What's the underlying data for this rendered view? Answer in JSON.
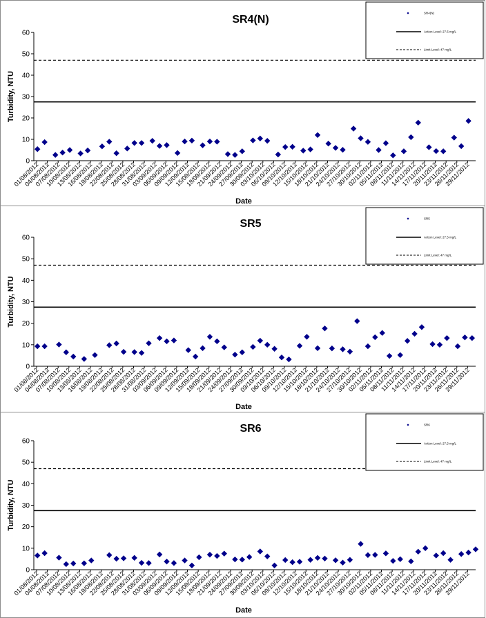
{
  "chart_data": [
    {
      "type": "scatter",
      "title": "SR4(N)",
      "xlabel": "Date",
      "ylabel": "Turbidity, NTU",
      "ylim": [
        0,
        60
      ],
      "yticks": [
        0,
        10,
        20,
        30,
        40,
        50,
        60
      ],
      "grid": false,
      "legend_position": "top-right",
      "xticklabels": [
        "01/08/2012",
        "04/08/2012",
        "07/08/2012",
        "10/08/2012",
        "13/08/2012",
        "16/08/2012",
        "19/08/2012",
        "22/08/2012",
        "25/08/2012",
        "28/08/2012",
        "31/08/2012",
        "03/09/2012",
        "06/09/2012",
        "09/09/2012",
        "12/09/2012",
        "15/09/2012",
        "18/09/2012",
        "21/09/2012",
        "24/09/2012",
        "27/09/2012",
        "30/09/2012",
        "03/10/2012",
        "06/10/2012",
        "09/10/2012",
        "12/10/2012",
        "15/10/2012",
        "18/10/2012",
        "21/10/2012",
        "24/10/2012",
        "27/10/2012",
        "30/10/2012",
        "02/11/2012",
        "05/11/2012",
        "08/11/2012",
        "11/11/2012",
        "14/11/2012",
        "17/11/2012",
        "20/11/2012",
        "23/11/2012",
        "26/11/2012",
        "29/11/2012"
      ],
      "series": [
        {
          "name": "SR4(N)",
          "kind": "markers",
          "marker": "diamond",
          "color": "#00008b",
          "x": [
            1,
            3,
            6,
            8,
            10,
            13,
            15,
            19,
            21,
            23,
            26,
            28,
            30,
            33,
            35,
            37,
            40,
            42,
            44,
            47,
            49,
            51,
            54,
            56,
            58,
            61,
            63,
            65,
            68,
            70,
            72,
            75,
            77,
            79,
            82,
            84,
            86,
            89,
            91,
            93,
            96,
            98,
            100,
            103,
            105,
            107,
            110,
            112,
            114,
            117,
            119,
            121
          ],
          "y": [
            5.4,
            8.7,
            2.7,
            3.8,
            5.0,
            3.4,
            4.8,
            6.7,
            8.9,
            3.5,
            5.7,
            8.3,
            8.3,
            9.3,
            6.9,
            7.3,
            3.6,
            9.0,
            9.4,
            7.2,
            9.0,
            8.9,
            3.1,
            2.7,
            4.4,
            9.5,
            10.4,
            9.3,
            2.9,
            6.4,
            6.5,
            4.7,
            5.3,
            12.0,
            8.0,
            6.0,
            5.1,
            15.0,
            10.5,
            8.8,
            5.0,
            8.2,
            2.5,
            4.4,
            11.0,
            17.8,
            6.3,
            4.5,
            4.4,
            10.8,
            6.8,
            18.6
          ]
        },
        {
          "name": "Action Level: 27.5 mg/L",
          "kind": "hline",
          "style": "solid",
          "value": 27.5
        },
        {
          "name": "Limit Level: 47 mg/L",
          "kind": "hline",
          "style": "dashed",
          "value": 47
        }
      ]
    },
    {
      "type": "scatter",
      "title": "SR5",
      "xlabel": "Date",
      "ylabel": "Turbidity, NTU",
      "ylim": [
        0,
        60
      ],
      "yticks": [
        0,
        10,
        20,
        30,
        40,
        50,
        60
      ],
      "grid": false,
      "legend_position": "top-right",
      "xticklabels": [
        "01/08/2012",
        "04/08/2012",
        "07/08/2012",
        "10/08/2012",
        "13/08/2012",
        "16/08/2012",
        "19/08/2012",
        "22/08/2012",
        "25/08/2012",
        "28/08/2012",
        "31/08/2012",
        "03/09/2012",
        "06/09/2012",
        "09/09/2012",
        "12/09/2012",
        "15/09/2012",
        "18/09/2012",
        "21/09/2012",
        "24/09/2012",
        "27/09/2012",
        "30/09/2012",
        "03/10/2012",
        "06/10/2012",
        "09/10/2012",
        "12/10/2012",
        "15/10/2012",
        "18/10/2012",
        "21/10/2012",
        "24/10/2012",
        "27/10/2012",
        "30/10/2012",
        "02/11/2012",
        "05/11/2012",
        "08/11/2012",
        "11/11/2012",
        "14/11/2012",
        "17/11/2012",
        "20/11/2012",
        "23/11/2012",
        "26/11/2012",
        "29/11/2012"
      ],
      "series": [
        {
          "name": "SR5",
          "kind": "markers",
          "marker": "diamond",
          "color": "#00008b",
          "x": [
            1,
            3,
            7,
            9,
            11,
            14,
            17,
            21,
            23,
            25,
            28,
            30,
            32,
            35,
            37,
            39,
            43,
            45,
            47,
            49,
            51,
            53,
            56,
            58,
            61,
            63,
            65,
            67,
            69,
            71,
            74,
            76,
            79,
            81,
            83,
            86,
            88,
            90,
            93,
            95,
            97,
            99,
            102,
            104,
            106,
            108,
            111,
            113,
            115,
            118,
            120,
            122
          ],
          "y": [
            9.3,
            9.3,
            10.1,
            6.5,
            4.5,
            3.4,
            5.2,
            9.8,
            10.6,
            6.7,
            6.6,
            6.2,
            10.7,
            13.1,
            11.6,
            12.0,
            7.5,
            4.5,
            8.4,
            13.7,
            11.6,
            8.8,
            5.4,
            6.5,
            9.0,
            11.9,
            10.0,
            8.1,
            4.1,
            3.2,
            9.5,
            13.7,
            8.4,
            17.6,
            8.3,
            7.9,
            6.8,
            21.0,
            9.3,
            13.5,
            15.5,
            4.8,
            5.2,
            11.8,
            15.1,
            18.2,
            10.3,
            10.0,
            13.1,
            9.3,
            13.4,
            13.1
          ]
        },
        {
          "name": "Action Level: 27.5 mg/L",
          "kind": "hline",
          "style": "solid",
          "value": 27.5
        },
        {
          "name": "Limit Level: 47 mg/L",
          "kind": "hline",
          "style": "dashed",
          "value": 47
        }
      ]
    },
    {
      "type": "scatter",
      "title": "SR6",
      "xlabel": "Date",
      "ylabel": "Turbidity, NTU",
      "ylim": [
        0,
        60
      ],
      "yticks": [
        0,
        10,
        20,
        30,
        40,
        50,
        60
      ],
      "grid": false,
      "legend_position": "top-right",
      "xticklabels": [
        "01/08/2012",
        "04/08/2012",
        "07/08/2012",
        "10/08/2012",
        "13/08/2012",
        "16/08/2012",
        "19/08/2012",
        "22/08/2012",
        "25/08/2012",
        "28/08/2012",
        "31/08/2012",
        "03/09/2012",
        "06/09/2012",
        "09/09/2012",
        "12/09/2012",
        "15/09/2012",
        "18/09/2012",
        "21/09/2012",
        "24/09/2012",
        "27/09/2012",
        "30/09/2012",
        "03/10/2012",
        "06/10/2012",
        "09/10/2012",
        "12/10/2012",
        "15/10/2012",
        "18/10/2012",
        "21/10/2012",
        "24/10/2012",
        "27/10/2012",
        "30/10/2012",
        "02/11/2012",
        "05/11/2012",
        "08/11/2012",
        "11/11/2012",
        "14/11/2012",
        "17/11/2012",
        "20/11/2012",
        "23/11/2012",
        "26/11/2012",
        "29/11/2012"
      ],
      "series": [
        {
          "name": "SR6",
          "kind": "markers",
          "marker": "diamond",
          "color": "#00008b",
          "x": [
            1,
            3,
            7,
            9,
            11,
            14,
            16,
            21,
            23,
            25,
            28,
            30,
            32,
            35,
            37,
            39,
            42,
            44,
            46,
            49,
            51,
            53,
            56,
            58,
            60,
            63,
            65,
            67,
            70,
            72,
            74,
            77,
            79,
            81,
            84,
            86,
            88,
            91,
            93,
            95,
            98,
            100,
            102,
            105,
            107,
            109,
            112,
            114,
            116,
            119,
            121,
            123
          ],
          "y": [
            6.6,
            7.7,
            5.6,
            2.6,
            2.9,
            3.0,
            4.3,
            6.8,
            5.1,
            5.3,
            5.5,
            3.2,
            3.1,
            7.1,
            3.8,
            3.1,
            4.3,
            2.0,
            5.8,
            7.0,
            6.4,
            7.5,
            4.8,
            4.7,
            5.9,
            8.5,
            6.2,
            2.0,
            4.5,
            3.5,
            3.7,
            4.6,
            5.5,
            5.2,
            4.4,
            3.3,
            4.6,
            12.0,
            6.8,
            6.9,
            7.6,
            4.1,
            4.9,
            3.9,
            8.4,
            10.0,
            6.6,
            7.7,
            4.6,
            7.3,
            8.0,
            9.5
          ]
        },
        {
          "name": "Action Level: 27.5 mg/L",
          "kind": "hline",
          "style": "solid",
          "value": 27.5
        },
        {
          "name": "Limit Level: 47 mg/L",
          "kind": "hline",
          "style": "dashed",
          "value": 47
        }
      ]
    }
  ]
}
